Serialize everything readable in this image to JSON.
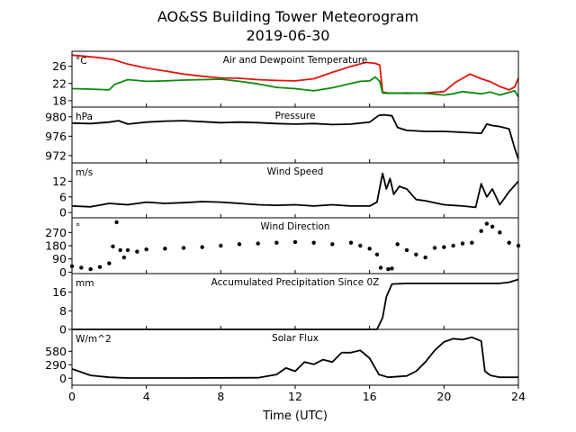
{
  "title": "AO&SS Building Tower Meteorogram",
  "subtitle": "2019-06-30",
  "xlabel": "Time (UTC)",
  "colors": {
    "temperature": "#e8120c",
    "dewpoint": "#0a8a0a",
    "line": "#000000"
  },
  "chart_data": [
    {
      "type": "line",
      "title": "Air and Dewpoint Temperature",
      "unit": "°C",
      "xlim": [
        0,
        24
      ],
      "ylim": [
        16.5,
        29.5
      ],
      "yticks": [
        18,
        22,
        26
      ],
      "x_ticks": [
        0,
        4,
        8,
        12,
        16,
        20,
        24
      ],
      "series": [
        {
          "key": "temperature",
          "x": [
            0,
            0.8,
            1.5,
            2.2,
            3,
            4,
            5,
            6,
            7,
            8,
            9,
            10,
            11,
            12,
            13,
            14,
            15,
            15.8,
            16.3,
            16.55,
            16.7,
            17,
            18,
            19,
            20,
            20.6,
            21,
            21.4,
            22,
            22.5,
            23,
            23.5,
            23.8,
            24
          ],
          "y": [
            28.6,
            28.3,
            28.0,
            27.6,
            26.5,
            25.6,
            24.9,
            24.2,
            23.7,
            23.3,
            23.2,
            22.9,
            22.7,
            22.6,
            23.1,
            24.6,
            26.0,
            26.9,
            26.7,
            26.3,
            20.0,
            19.8,
            19.7,
            19.8,
            20.1,
            22.2,
            23.2,
            24.2,
            23.1,
            22.4,
            21.3,
            20.5,
            21.2,
            23.3
          ]
        },
        {
          "key": "dewpoint",
          "x": [
            0,
            1,
            2,
            2.3,
            3,
            4,
            5,
            6,
            7,
            8,
            9,
            10,
            11,
            12,
            13,
            14,
            15,
            15.5,
            16,
            16.3,
            16.55,
            16.7,
            17,
            18,
            19,
            20,
            20.5,
            21,
            22,
            22.5,
            23,
            23.8,
            24
          ],
          "y": [
            20.8,
            20.7,
            20.5,
            21.8,
            22.9,
            22.5,
            22.6,
            22.8,
            22.9,
            23.0,
            22.5,
            21.9,
            21.1,
            20.8,
            20.3,
            21.0,
            22.0,
            22.5,
            22.6,
            23.5,
            22.5,
            19.8,
            19.7,
            19.8,
            19.7,
            19.3,
            19.6,
            20.1,
            19.6,
            20.0,
            19.3,
            20.3,
            18.9
          ]
        }
      ]
    },
    {
      "type": "line",
      "title": "Pressure",
      "unit": "hPa",
      "xlim": [
        0,
        24
      ],
      "ylim": [
        970.5,
        982
      ],
      "yticks": [
        972,
        976,
        980
      ],
      "x_ticks": [
        0,
        4,
        8,
        12,
        16,
        20,
        24
      ],
      "series": [
        {
          "key": "pressure",
          "x": [
            0,
            1,
            2,
            2.5,
            3,
            4,
            5,
            6,
            7,
            8,
            9,
            10,
            11,
            12,
            13,
            14,
            15,
            16,
            16.5,
            16.8,
            17.2,
            17.5,
            18,
            19,
            20,
            21,
            22,
            22.3,
            22.6,
            23,
            23.5,
            23.8,
            24
          ],
          "y": [
            978.7,
            978.6,
            978.9,
            979.2,
            978.5,
            978.9,
            979.1,
            979.2,
            979.0,
            978.8,
            978.9,
            978.8,
            978.6,
            978.5,
            978.6,
            978.4,
            978.5,
            978.9,
            980.3,
            980.4,
            980.2,
            977.8,
            977.2,
            977.0,
            977.0,
            976.8,
            976.6,
            978.5,
            978.2,
            978.0,
            977.5,
            973.5,
            971.3
          ]
        }
      ]
    },
    {
      "type": "line",
      "title": "Wind Speed",
      "unit": "m/s",
      "xlim": [
        0,
        24
      ],
      "ylim": [
        -2,
        19
      ],
      "yticks": [
        0,
        6,
        12
      ],
      "x_ticks": [
        0,
        4,
        8,
        12,
        16,
        20,
        24
      ],
      "series": [
        {
          "key": "wind_speed",
          "x": [
            0,
            1,
            2,
            3,
            4,
            5,
            6,
            7,
            8,
            9,
            10,
            11,
            12,
            13,
            14,
            15,
            16,
            16.4,
            16.7,
            16.9,
            17.1,
            17.3,
            17.6,
            18,
            18.5,
            19,
            20,
            21,
            21.7,
            22,
            22.3,
            22.6,
            23,
            23.5,
            24
          ],
          "y": [
            2.5,
            2.2,
            3.5,
            3.0,
            4.0,
            3.5,
            3.8,
            4.2,
            4.0,
            3.5,
            3.0,
            2.8,
            3.0,
            2.5,
            3.0,
            2.5,
            2.5,
            4.0,
            15.0,
            9.0,
            13.0,
            7.0,
            10.0,
            9.0,
            5.0,
            4.5,
            3.0,
            2.5,
            2.0,
            11.0,
            6.0,
            9.0,
            3.0,
            8.0,
            12.0
          ]
        }
      ]
    },
    {
      "type": "scatter",
      "title": "Wind Direction",
      "unit": "°",
      "xlim": [
        0,
        24
      ],
      "ylim": [
        -10,
        370
      ],
      "yticks": [
        0,
        90,
        180,
        270
      ],
      "x_ticks": [
        0,
        4,
        8,
        12,
        16,
        20,
        24
      ],
      "series": [
        {
          "key": "wind_direction",
          "x": [
            0,
            0.5,
            1,
            1.5,
            2,
            2.2,
            2.4,
            2.6,
            2.8,
            3,
            3.5,
            4,
            5,
            6,
            7,
            8,
            9,
            10,
            11,
            12,
            13,
            14,
            15,
            15.5,
            16,
            16.4,
            16.6,
            17,
            17.2,
            17.5,
            18,
            18.5,
            19,
            19.5,
            20,
            20.5,
            21,
            21.5,
            22,
            22.3,
            22.6,
            23,
            23.5,
            24
          ],
          "y": [
            40,
            30,
            20,
            35,
            60,
            175,
            340,
            150,
            100,
            150,
            140,
            155,
            160,
            165,
            170,
            180,
            190,
            195,
            200,
            205,
            200,
            190,
            200,
            180,
            160,
            120,
            30,
            20,
            25,
            190,
            150,
            120,
            100,
            165,
            170,
            180,
            195,
            200,
            280,
            330,
            310,
            270,
            200,
            180
          ]
        }
      ]
    },
    {
      "type": "line",
      "title": "Accumulated Precipitation Since 0Z",
      "unit": "mm",
      "xlim": [
        0,
        24
      ],
      "ylim": [
        0,
        24
      ],
      "yticks": [
        0,
        8,
        16
      ],
      "x_ticks": [
        0,
        4,
        8,
        12,
        16,
        20,
        24
      ],
      "series": [
        {
          "key": "precipitation",
          "x": [
            0,
            16.4,
            16.7,
            16.9,
            17.2,
            18,
            20,
            22,
            23,
            23.5,
            24
          ],
          "y": [
            0,
            0,
            5,
            14,
            19.5,
            19.8,
            19.8,
            19.8,
            19.8,
            20.3,
            21.5
          ]
        }
      ]
    },
    {
      "type": "line",
      "title": "Solar Flux",
      "unit": "W/m^2",
      "xlim": [
        0,
        24
      ],
      "ylim": [
        -150,
        1050
      ],
      "yticks": [
        0,
        290,
        580
      ],
      "x_ticks": [
        0,
        4,
        8,
        12,
        16,
        20,
        24
      ],
      "series": [
        {
          "key": "solar_flux",
          "x": [
            0,
            0.5,
            1,
            2,
            3,
            6,
            10,
            11,
            11.5,
            12,
            12.5,
            13,
            13.5,
            14,
            14.5,
            15,
            15.5,
            16,
            16.5,
            17,
            18,
            18.5,
            19,
            19.5,
            20,
            20.5,
            21,
            21.5,
            22,
            22.2,
            22.5,
            23,
            24
          ],
          "y": [
            200,
            130,
            60,
            20,
            5,
            5,
            10,
            80,
            220,
            150,
            350,
            300,
            400,
            350,
            550,
            550,
            600,
            430,
            80,
            20,
            50,
            150,
            350,
            600,
            780,
            850,
            830,
            880,
            800,
            150,
            60,
            20,
            20
          ]
        }
      ]
    }
  ]
}
